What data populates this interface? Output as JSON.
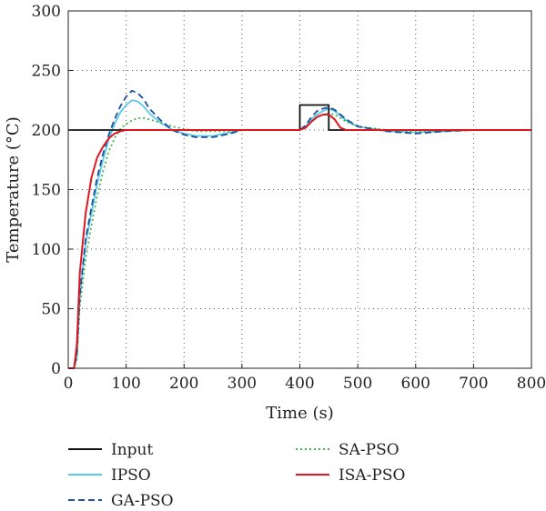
{
  "chart_data": {
    "type": "line",
    "xlabel": "Time (s)",
    "ylabel": "Temperature (°C)",
    "xlim": [
      0,
      800
    ],
    "ylim": [
      0,
      300
    ],
    "xticks": [
      0,
      100,
      200,
      300,
      400,
      500,
      600,
      700,
      800
    ],
    "yticks": [
      0,
      50,
      100,
      150,
      200,
      250,
      300
    ],
    "grid": "dotted",
    "legend_position": "bottom",
    "series": [
      {
        "name": "Input",
        "color": "#111111",
        "style": "solid",
        "x": [
          0,
          400,
          400,
          450,
          450,
          800
        ],
        "y": [
          200,
          200,
          221,
          221,
          200,
          200
        ]
      },
      {
        "name": "IPSO",
        "color": "#5bc8e6",
        "style": "solid",
        "x": [
          0,
          10,
          15,
          20,
          30,
          40,
          50,
          60,
          70,
          80,
          90,
          100,
          110,
          120,
          130,
          140,
          160,
          180,
          200,
          220,
          250,
          280,
          300,
          350,
          400,
          410,
          420,
          430,
          440,
          450,
          460,
          480,
          500,
          550,
          600,
          650,
          700,
          800
        ],
        "y": [
          0,
          0,
          10,
          60,
          105,
          130,
          155,
          175,
          192,
          205,
          215,
          221,
          225,
          224,
          220,
          214,
          206,
          200,
          197,
          195,
          195,
          198,
          200,
          200,
          200,
          203,
          209,
          213,
          216,
          218,
          216,
          208,
          203,
          199,
          198,
          199,
          200,
          200
        ]
      },
      {
        "name": "GA-PSO",
        "color": "#1f4e9e",
        "style": "dashed",
        "x": [
          0,
          10,
          15,
          20,
          30,
          40,
          50,
          60,
          70,
          80,
          90,
          100,
          110,
          120,
          130,
          140,
          160,
          180,
          200,
          220,
          250,
          280,
          300,
          350,
          400,
          410,
          420,
          430,
          440,
          450,
          460,
          480,
          500,
          550,
          600,
          650,
          700,
          800
        ],
        "y": [
          0,
          0,
          12,
          62,
          108,
          135,
          160,
          180,
          196,
          209,
          220,
          228,
          233,
          231,
          226,
          218,
          208,
          200,
          196,
          194,
          194,
          197,
          200,
          200,
          200,
          204,
          211,
          216,
          218,
          219,
          217,
          209,
          203,
          199,
          197,
          199,
          200,
          200
        ]
      },
      {
        "name": "SA-PSO",
        "color": "#3db34a",
        "style": "dotted",
        "x": [
          0,
          10,
          15,
          20,
          30,
          40,
          50,
          60,
          70,
          80,
          90,
          100,
          110,
          120,
          130,
          140,
          160,
          180,
          200,
          220,
          250,
          280,
          300,
          350,
          400,
          410,
          420,
          430,
          440,
          450,
          460,
          480,
          500,
          550,
          600,
          650,
          700,
          800
        ],
        "y": [
          0,
          0,
          8,
          52,
          92,
          120,
          145,
          165,
          182,
          193,
          201,
          205,
          208,
          210,
          210,
          209,
          206,
          203,
          201,
          199,
          199,
          199,
          200,
          200,
          200,
          202,
          207,
          211,
          213,
          214,
          213,
          207,
          203,
          200,
          199,
          199,
          200,
          200
        ]
      },
      {
        "name": "ISA-PSO",
        "color": "#e0161e",
        "style": "solid",
        "x": [
          0,
          10,
          15,
          20,
          30,
          40,
          50,
          60,
          70,
          80,
          90,
          100,
          120,
          150,
          200,
          300,
          400,
          410,
          420,
          430,
          440,
          450,
          460,
          470,
          480,
          500,
          800
        ],
        "y": [
          0,
          0,
          20,
          80,
          130,
          160,
          177,
          186,
          193,
          197,
          199,
          200,
          200,
          200,
          200,
          200,
          200,
          202,
          207,
          211,
          213,
          213,
          209,
          202,
          200,
          200,
          200
        ]
      }
    ]
  }
}
